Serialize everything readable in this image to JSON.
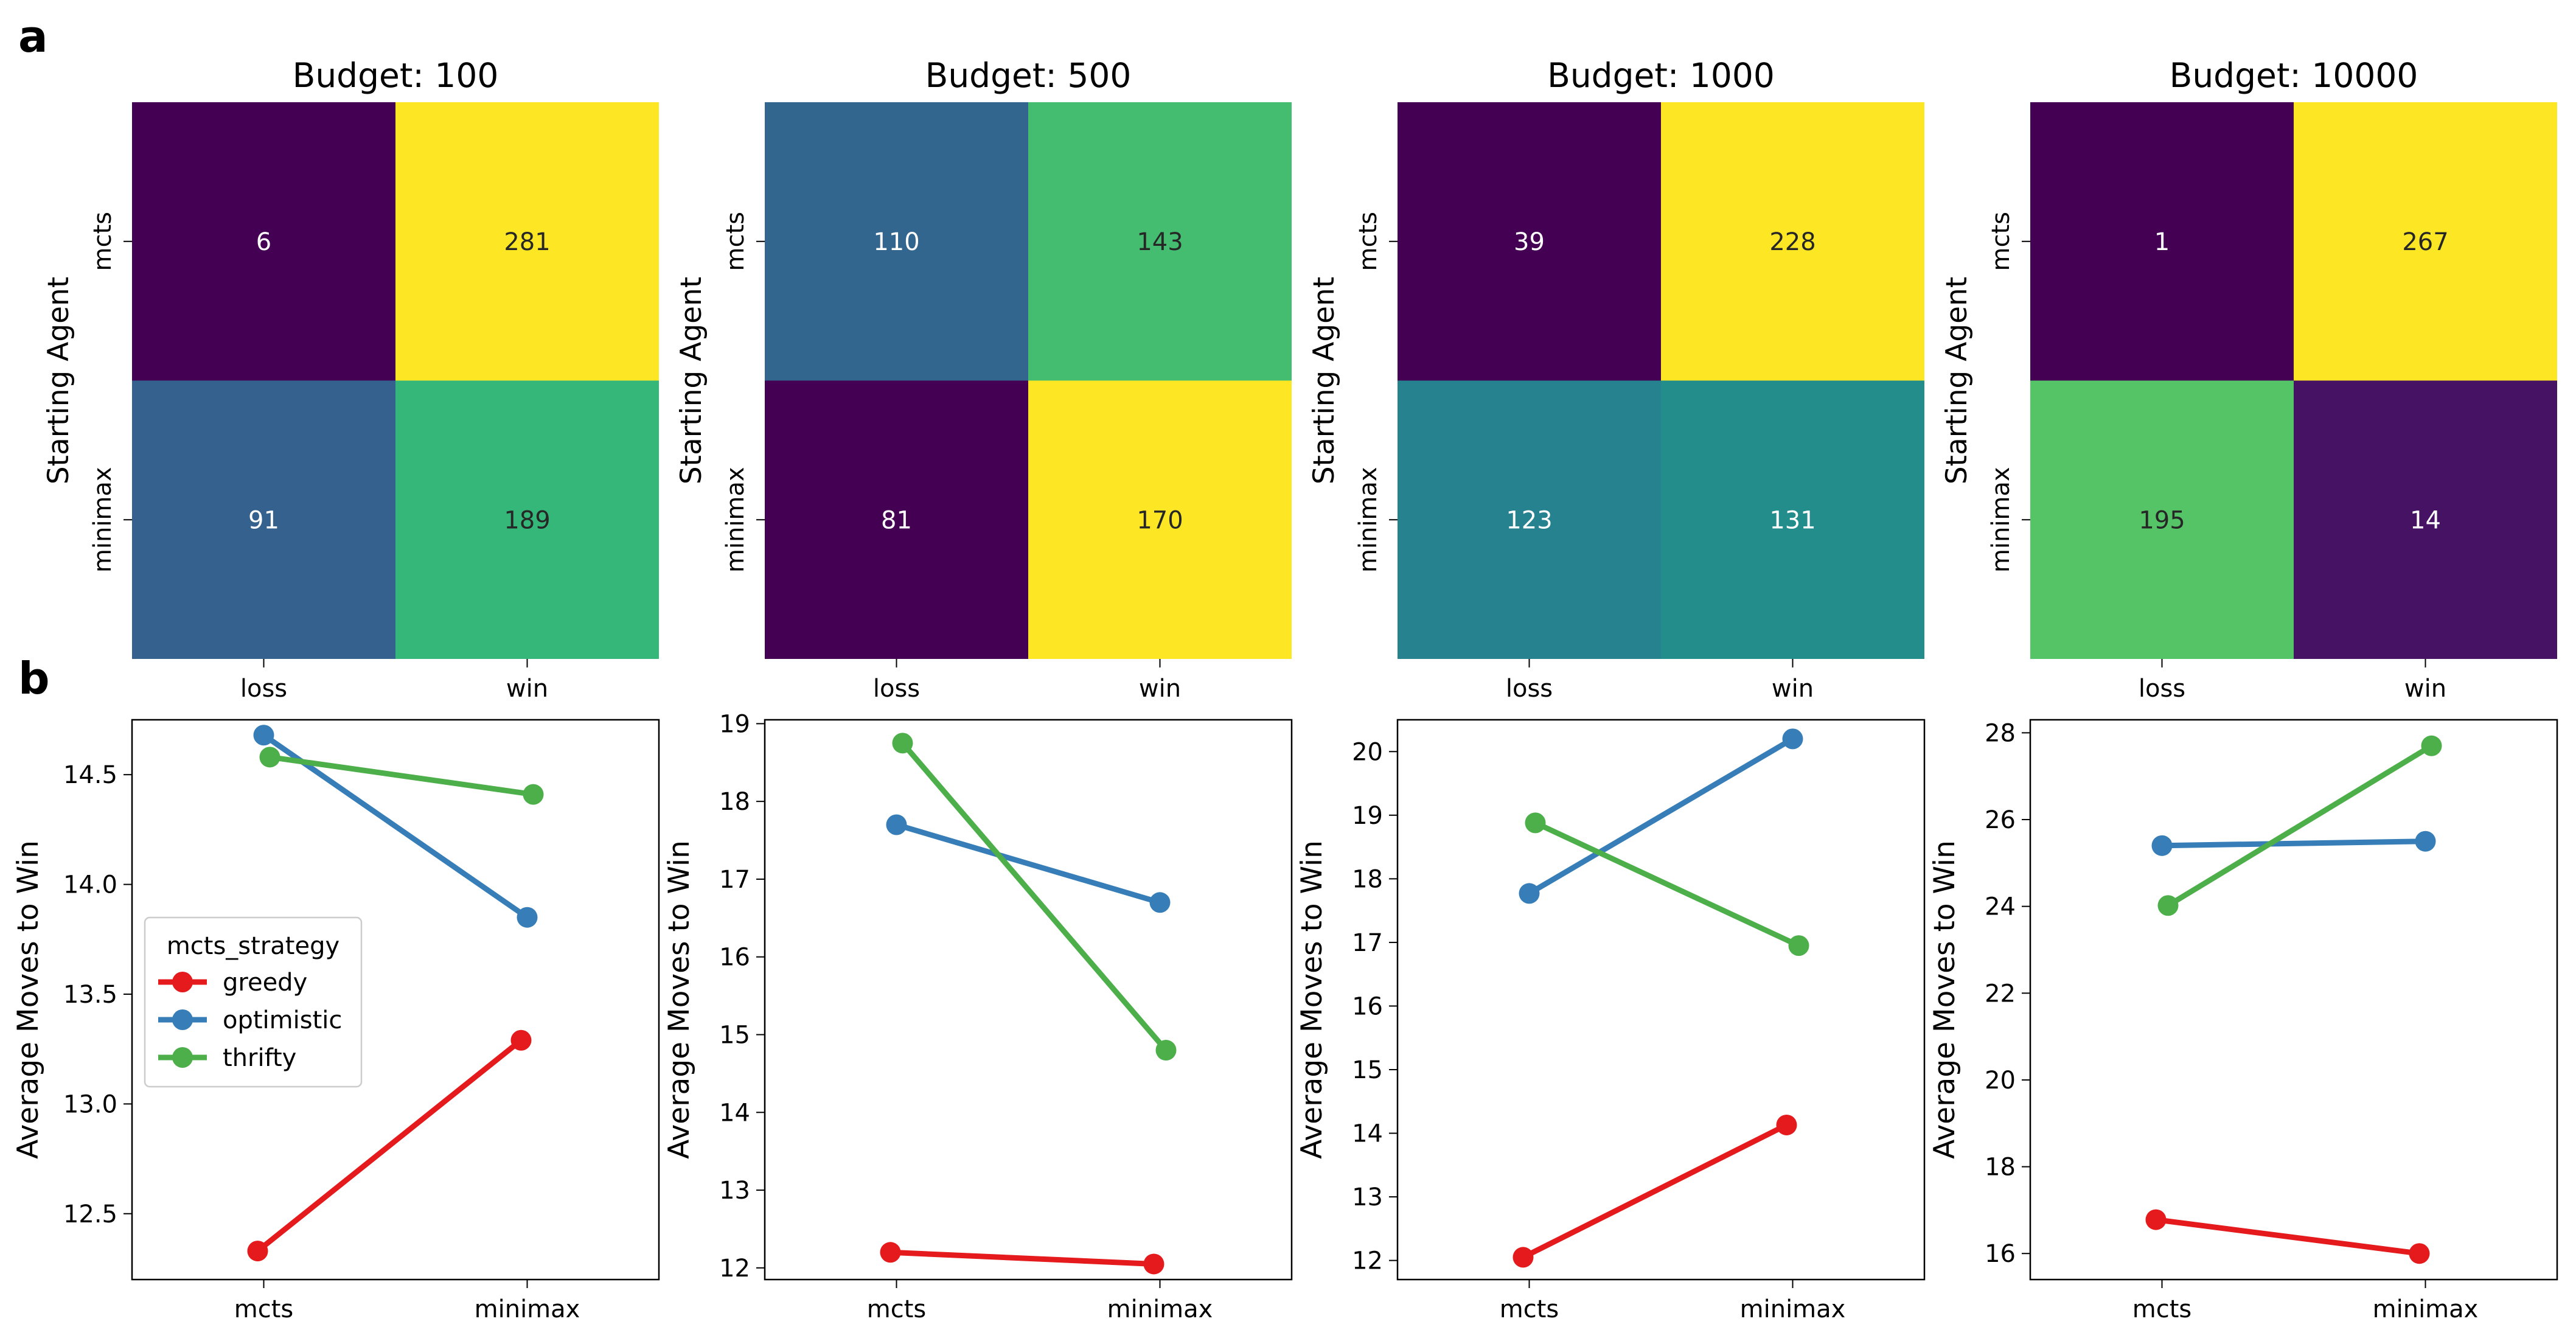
{
  "panel_labels": [
    "a",
    "b"
  ],
  "colors": {
    "viridis": [
      "#440154",
      "#482878",
      "#3e4989",
      "#31688e",
      "#26828e",
      "#1f9e89",
      "#35b779",
      "#6ece58",
      "#b5de2b",
      "#fde725"
    ],
    "greedy": "#e41a1c",
    "optimistic": "#377eb8",
    "thrifty": "#4daf4a"
  },
  "chart_data": [
    {
      "type": "heatmap",
      "title": "Budget: 100",
      "ylabel": "Starting Agent",
      "xlabel": "",
      "x_categories": [
        "loss",
        "win"
      ],
      "y_categories": [
        "mcts",
        "minimax"
      ],
      "values": [
        [
          6,
          281
        ],
        [
          91,
          189
        ]
      ]
    },
    {
      "type": "heatmap",
      "title": "Budget: 500",
      "ylabel": "Starting Agent",
      "xlabel": "",
      "x_categories": [
        "loss",
        "win"
      ],
      "y_categories": [
        "mcts",
        "minimax"
      ],
      "values": [
        [
          110,
          143
        ],
        [
          81,
          170
        ]
      ]
    },
    {
      "type": "heatmap",
      "title": "Budget: 1000",
      "ylabel": "Starting Agent",
      "xlabel": "",
      "x_categories": [
        "loss",
        "win"
      ],
      "y_categories": [
        "mcts",
        "minimax"
      ],
      "values": [
        [
          39,
          228
        ],
        [
          123,
          131
        ]
      ]
    },
    {
      "type": "heatmap",
      "title": "Budget: 10000",
      "ylabel": "Starting Agent",
      "xlabel": "",
      "x_categories": [
        "loss",
        "win"
      ],
      "y_categories": [
        "mcts",
        "minimax"
      ],
      "values": [
        [
          1,
          267
        ],
        [
          195,
          14
        ]
      ]
    },
    {
      "type": "line",
      "ylabel": "Average Moves to Win",
      "categories": [
        "mcts",
        "minimax"
      ],
      "ylim": [
        12.2,
        14.75
      ],
      "yticks": [
        12.5,
        13.0,
        13.5,
        14.0,
        14.5
      ],
      "ytick_labels": [
        "12.5",
        "13.0",
        "13.5",
        "14.0",
        "14.5"
      ],
      "legend": {
        "title": "mcts_strategy",
        "placement": "center-left"
      },
      "series": [
        {
          "name": "greedy",
          "color_key": "greedy",
          "values": [
            12.33,
            13.29
          ]
        },
        {
          "name": "optimistic",
          "color_key": "optimistic",
          "values": [
            14.68,
            13.85
          ]
        },
        {
          "name": "thrifty",
          "color_key": "thrifty",
          "values": [
            14.58,
            14.41
          ]
        }
      ]
    },
    {
      "type": "line",
      "ylabel": "Average Moves to Win",
      "categories": [
        "mcts",
        "minimax"
      ],
      "ylim": [
        11.85,
        19.05
      ],
      "yticks": [
        12,
        13,
        14,
        15,
        16,
        17,
        18,
        19
      ],
      "ytick_labels": [
        "12",
        "13",
        "14",
        "15",
        "16",
        "17",
        "18",
        "19"
      ],
      "series": [
        {
          "name": "greedy",
          "color_key": "greedy",
          "values": [
            12.2,
            12.05
          ]
        },
        {
          "name": "optimistic",
          "color_key": "optimistic",
          "values": [
            17.7,
            16.7
          ]
        },
        {
          "name": "thrifty",
          "color_key": "thrifty",
          "values": [
            18.75,
            14.8
          ]
        }
      ]
    },
    {
      "type": "line",
      "ylabel": "Average Moves to Win",
      "categories": [
        "mcts",
        "minimax"
      ],
      "ylim": [
        11.7,
        20.5
      ],
      "yticks": [
        12,
        13,
        14,
        15,
        16,
        17,
        18,
        19,
        20
      ],
      "ytick_labels": [
        "12",
        "13",
        "14",
        "15",
        "16",
        "17",
        "18",
        "19",
        "20"
      ],
      "series": [
        {
          "name": "greedy",
          "color_key": "greedy",
          "values": [
            12.05,
            14.13
          ]
        },
        {
          "name": "optimistic",
          "color_key": "optimistic",
          "values": [
            17.77,
            20.2
          ]
        },
        {
          "name": "thrifty",
          "color_key": "thrifty",
          "values": [
            18.88,
            16.95
          ]
        }
      ]
    },
    {
      "type": "line",
      "ylabel": "Average Moves to Win",
      "categories": [
        "mcts",
        "minimax"
      ],
      "ylim": [
        15.4,
        28.3
      ],
      "yticks": [
        16,
        18,
        20,
        22,
        24,
        26,
        28
      ],
      "ytick_labels": [
        "16",
        "18",
        "20",
        "22",
        "24",
        "26",
        "28"
      ],
      "series": [
        {
          "name": "greedy",
          "color_key": "greedy",
          "values": [
            16.78,
            16.0
          ]
        },
        {
          "name": "optimistic",
          "color_key": "optimistic",
          "values": [
            25.4,
            25.5
          ]
        },
        {
          "name": "thrifty",
          "color_key": "thrifty",
          "values": [
            24.02,
            27.7
          ]
        }
      ]
    }
  ]
}
